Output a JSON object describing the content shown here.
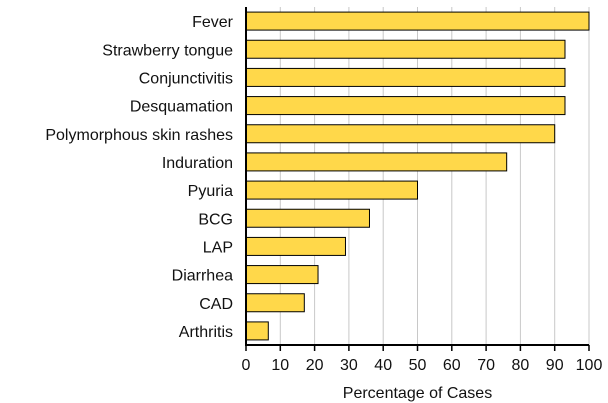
{
  "chart_data": {
    "type": "bar",
    "orientation": "horizontal",
    "categories": [
      "Fever",
      "Strawberry tongue",
      "Conjunctivitis",
      "Desquamation",
      "Polymorphous skin rashes",
      "Induration",
      "Pyuria",
      "BCG",
      "LAP",
      "Diarrhea",
      "CAD",
      "Arthritis"
    ],
    "values": [
      100,
      93,
      93,
      93,
      90,
      76,
      50,
      36,
      29,
      21,
      17,
      6.5
    ],
    "title": "",
    "xlabel": "Percentage of Cases",
    "ylabel": "",
    "xlim": [
      0,
      100
    ],
    "xticks": [
      0,
      10,
      20,
      30,
      40,
      50,
      60,
      70,
      80,
      90,
      100
    ],
    "grid": "vertical",
    "legend": "none",
    "colors": {
      "bar_fill": "#FFD84A",
      "bar_stroke": "#000000",
      "grid": "#c8c8c8",
      "axis": "#000000"
    }
  }
}
